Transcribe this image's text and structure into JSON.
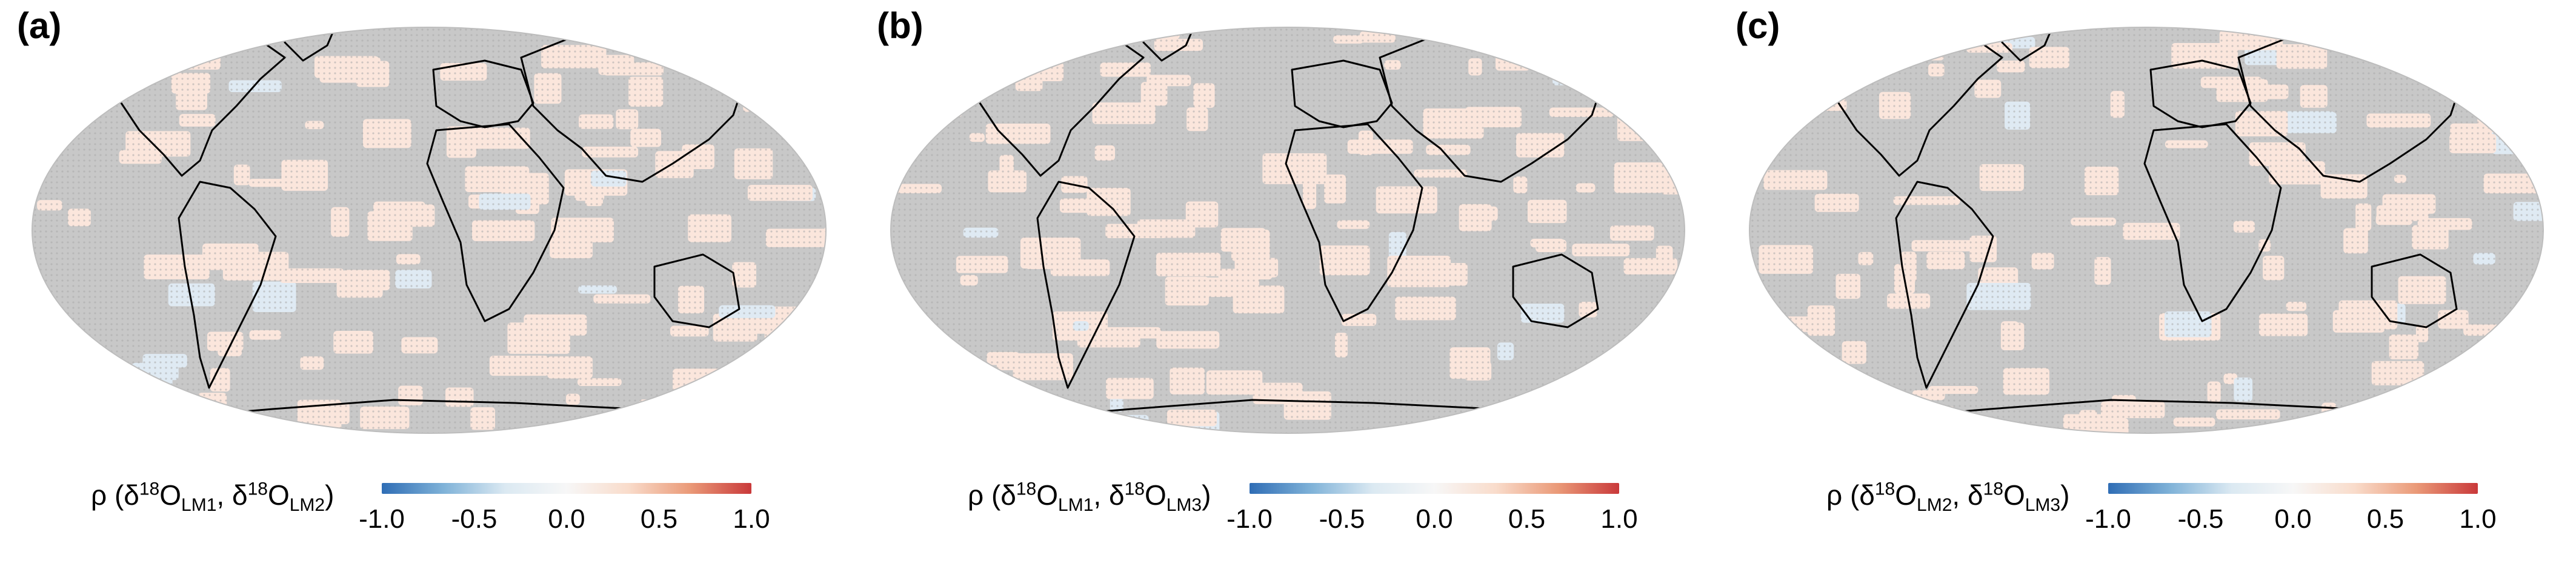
{
  "chart_data": [
    {
      "type": "heatmap",
      "panel_label": "(a)",
      "colorbar": {
        "prefix": "ρ (δ",
        "iso": "18",
        "element": "O",
        "sub1": "LM1",
        "sub2": "LM2",
        "range": [
          -1.0,
          1.0
        ],
        "ticks": [
          "-1.0",
          "-0.5",
          "0.0",
          "0.5",
          "1.0"
        ],
        "tick_values": [
          -1.0,
          -0.5,
          0.0,
          0.5,
          1.0
        ],
        "colors": [
          "#2f6db5",
          "#7fb2d8",
          "#dbe9f2",
          "#f7f7f7",
          "#f9dccb",
          "#ea9a78",
          "#c9393a"
        ]
      }
    },
    {
      "type": "heatmap",
      "panel_label": "(b)",
      "colorbar": {
        "prefix": "ρ (δ",
        "iso": "18",
        "element": "O",
        "sub1": "LM1",
        "sub2": "LM3",
        "range": [
          -1.0,
          1.0
        ],
        "ticks": [
          "-1.0",
          "-0.5",
          "0.0",
          "0.5",
          "1.0"
        ],
        "tick_values": [
          -1.0,
          -0.5,
          0.0,
          0.5,
          1.0
        ],
        "colors": [
          "#2f6db5",
          "#7fb2d8",
          "#dbe9f2",
          "#f7f7f7",
          "#f9dccb",
          "#ea9a78",
          "#c9393a"
        ]
      }
    },
    {
      "type": "heatmap",
      "panel_label": "(c)",
      "colorbar": {
        "prefix": "ρ (δ",
        "iso": "18",
        "element": "O",
        "sub1": "LM2",
        "sub2": "LM3",
        "range": [
          -1.0,
          1.0
        ],
        "ticks": [
          "-1.0",
          "-0.5",
          "0.0",
          "0.5",
          "1.0"
        ],
        "tick_values": [
          -1.0,
          -0.5,
          0.0,
          0.5,
          1.0
        ],
        "colors": [
          "#2f6db5",
          "#7fb2d8",
          "#dbe9f2",
          "#f7f7f7",
          "#f9dccb",
          "#ea9a78",
          "#c9393a"
        ]
      }
    }
  ],
  "map_colors": {
    "insignificant": "#c8c8c8",
    "weak_positive": "#fbe6dc",
    "weak_negative": "#dfeaf3",
    "coastline": "#000000"
  }
}
